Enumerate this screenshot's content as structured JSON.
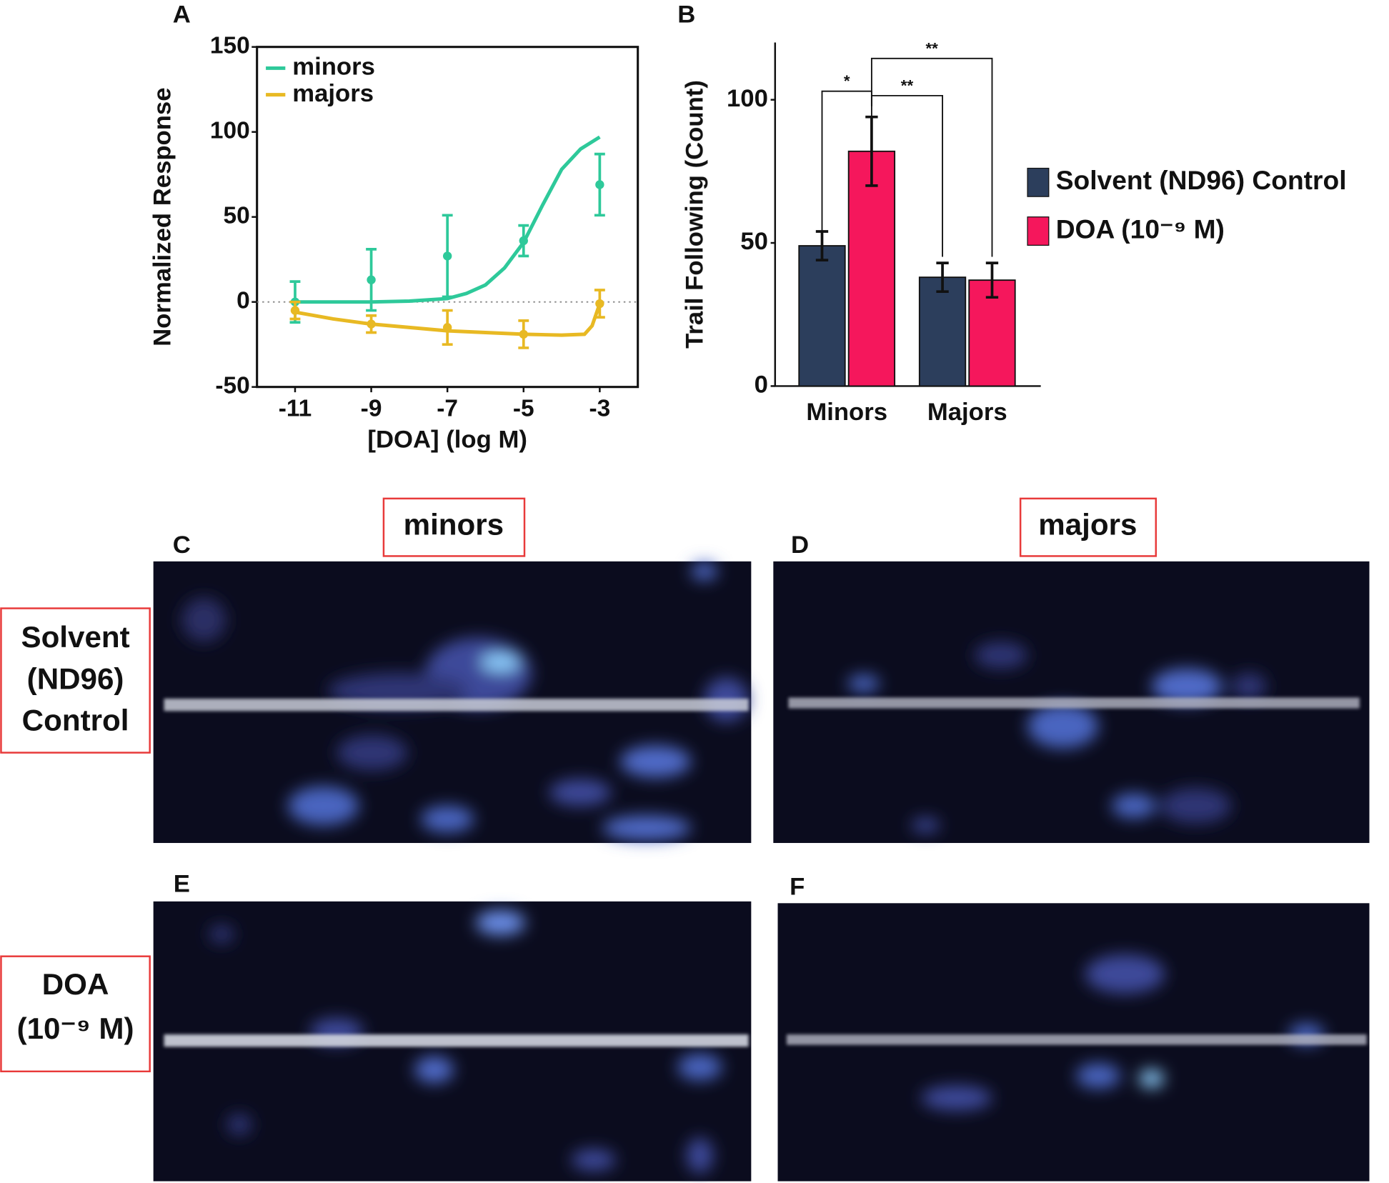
{
  "chart_data": [
    {
      "type": "line",
      "panel": "A",
      "x_label": "[DOA] (log M)",
      "y_label": "Normalized Response",
      "x": [
        -11,
        -9,
        -7,
        -5,
        -3
      ],
      "xlim": [
        -12,
        -2
      ],
      "xticks": [
        -11,
        -9,
        -7,
        -5,
        -3
      ],
      "ylim": [
        -50,
        150
      ],
      "yticks": [
        -50,
        0,
        50,
        100,
        150
      ],
      "reference_line": 0,
      "legend": "top-left",
      "series": [
        {
          "name": "minors",
          "color": "#2ec99a",
          "values": [
            0,
            13,
            27,
            36,
            69
          ],
          "errors": [
            12,
            18,
            24,
            9,
            18
          ],
          "fit_x": [
            -11,
            -10,
            -9,
            -8,
            -7,
            -6.5,
            -6,
            -5.5,
            -5,
            -4.5,
            -4,
            -3.5,
            -3
          ],
          "fit": [
            0,
            0,
            0,
            0.5,
            2,
            5,
            10,
            20,
            35,
            57,
            78,
            90,
            97
          ]
        },
        {
          "name": "majors",
          "color": "#e8b923",
          "values": [
            -5,
            -13,
            -15,
            -19,
            -1
          ],
          "errors": [
            5,
            5,
            10,
            8,
            8
          ],
          "fit_x": [
            -11,
            -10,
            -9,
            -8,
            -7,
            -6,
            -5,
            -4,
            -3.4,
            -3.2,
            -3
          ],
          "fit": [
            -6,
            -10,
            -13,
            -15,
            -17,
            -18,
            -19,
            -19.5,
            -19,
            -14,
            -1
          ]
        }
      ]
    },
    {
      "type": "bar",
      "panel": "B",
      "y_label": "Trail Following (Count)",
      "categories": [
        "Minors",
        "Majors"
      ],
      "ylim": [
        0,
        120
      ],
      "yticks": [
        0,
        50,
        100
      ],
      "legend": "right",
      "series": [
        {
          "name": "Solvent (ND96) Control",
          "color": "#2c3e5c",
          "values": [
            49,
            38
          ],
          "errors": [
            5,
            5
          ]
        },
        {
          "name": "DOA (10⁻⁹ M)",
          "color": "#f5175c",
          "values": [
            82,
            37
          ],
          "errors": [
            12,
            6
          ]
        }
      ],
      "annotations": [
        "*",
        "**",
        "**"
      ]
    }
  ],
  "heatmaps": {
    "columns": [
      "minors",
      "majors"
    ],
    "rows": [
      [
        "Solvent",
        "(ND96)",
        "Control"
      ],
      [
        "DOA",
        "(10⁻⁹ M)"
      ]
    ],
    "panels": [
      "C",
      "D",
      "E",
      "F"
    ]
  }
}
